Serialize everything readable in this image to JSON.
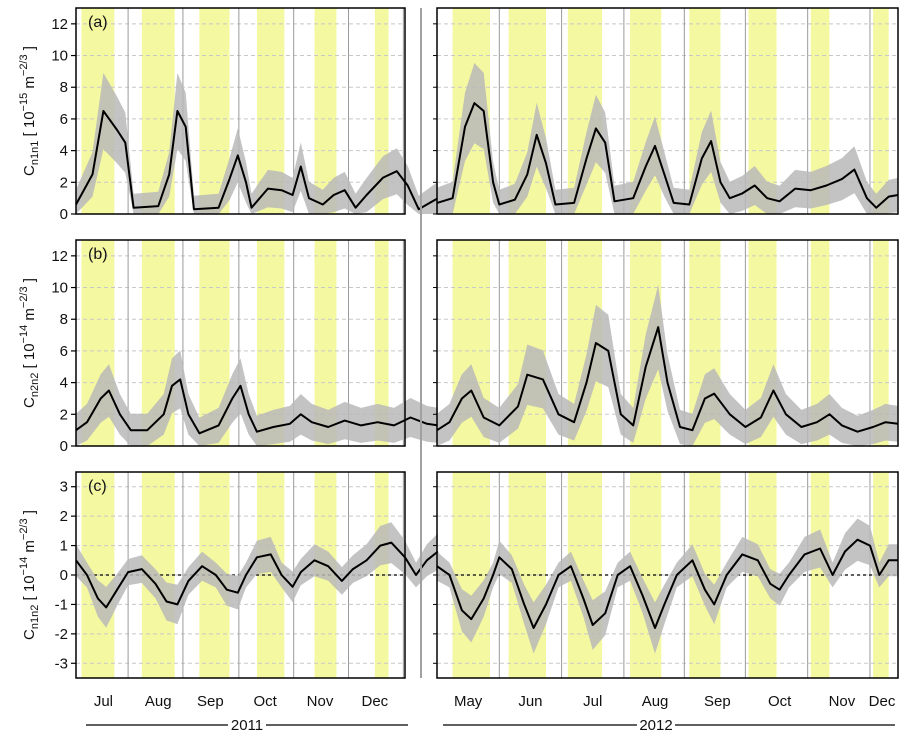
{
  "chart_data": [
    {
      "type": "line",
      "panel_label": "(a)",
      "ylabel": {
        "main": "C",
        "sub": "n1n1",
        "rest": " [ 10",
        "exp1": "−15",
        "mid": " m",
        "exp2": "−2/3",
        "end": " ]"
      },
      "ylim": [
        0,
        13
      ],
      "yticks": [
        0,
        2,
        4,
        6,
        8,
        10,
        12
      ],
      "zero_line": false,
      "grid": true,
      "series_2011": [
        {
          "x": 0,
          "y": 0.6
        },
        {
          "x": 0.3,
          "y": 2.5
        },
        {
          "x": 0.5,
          "y": 6.5
        },
        {
          "x": 0.75,
          "y": 5.3
        },
        {
          "x": 0.9,
          "y": 4.5
        },
        {
          "x": 1.05,
          "y": 0.4
        },
        {
          "x": 1.5,
          "y": 0.5
        },
        {
          "x": 1.7,
          "y": 2.5
        },
        {
          "x": 1.85,
          "y": 6.5
        },
        {
          "x": 2.0,
          "y": 5.5
        },
        {
          "x": 2.15,
          "y": 0.3
        },
        {
          "x": 2.6,
          "y": 0.4
        },
        {
          "x": 2.8,
          "y": 2.2
        },
        {
          "x": 2.95,
          "y": 3.7
        },
        {
          "x": 3.1,
          "y": 2.0
        },
        {
          "x": 3.2,
          "y": 0.4
        },
        {
          "x": 3.5,
          "y": 1.6
        },
        {
          "x": 3.75,
          "y": 1.5
        },
        {
          "x": 3.95,
          "y": 1.2
        },
        {
          "x": 4.1,
          "y": 3.0
        },
        {
          "x": 4.25,
          "y": 1.0
        },
        {
          "x": 4.5,
          "y": 0.6
        },
        {
          "x": 4.7,
          "y": 1.2
        },
        {
          "x": 4.9,
          "y": 1.5
        },
        {
          "x": 5.1,
          "y": 0.4
        },
        {
          "x": 5.3,
          "y": 1.2
        },
        {
          "x": 5.6,
          "y": 2.3
        },
        {
          "x": 5.85,
          "y": 2.7
        },
        {
          "x": 6.05,
          "y": 1.8
        },
        {
          "x": 6.25,
          "y": 0.3
        },
        {
          "x": 6.45,
          "y": 0.7
        },
        {
          "x": 6.6,
          "y": 1.0
        }
      ],
      "series_2012": [
        {
          "x": 0,
          "y": 0.7
        },
        {
          "x": 0.25,
          "y": 1.0
        },
        {
          "x": 0.45,
          "y": 5.5
        },
        {
          "x": 0.6,
          "y": 7.0
        },
        {
          "x": 0.75,
          "y": 6.5
        },
        {
          "x": 0.9,
          "y": 2.0
        },
        {
          "x": 1.0,
          "y": 0.6
        },
        {
          "x": 1.25,
          "y": 0.9
        },
        {
          "x": 1.45,
          "y": 2.5
        },
        {
          "x": 1.6,
          "y": 5.0
        },
        {
          "x": 1.75,
          "y": 3.2
        },
        {
          "x": 1.9,
          "y": 0.6
        },
        {
          "x": 2.2,
          "y": 0.7
        },
        {
          "x": 2.4,
          "y": 3.5
        },
        {
          "x": 2.55,
          "y": 5.4
        },
        {
          "x": 2.7,
          "y": 4.5
        },
        {
          "x": 2.85,
          "y": 0.8
        },
        {
          "x": 3.15,
          "y": 1.0
        },
        {
          "x": 3.35,
          "y": 3.0
        },
        {
          "x": 3.5,
          "y": 4.3
        },
        {
          "x": 3.65,
          "y": 2.5
        },
        {
          "x": 3.8,
          "y": 0.7
        },
        {
          "x": 4.05,
          "y": 0.6
        },
        {
          "x": 4.25,
          "y": 3.5
        },
        {
          "x": 4.4,
          "y": 4.6
        },
        {
          "x": 4.55,
          "y": 2.0
        },
        {
          "x": 4.7,
          "y": 1.0
        },
        {
          "x": 4.9,
          "y": 1.3
        },
        {
          "x": 5.1,
          "y": 1.8
        },
        {
          "x": 5.3,
          "y": 1.0
        },
        {
          "x": 5.5,
          "y": 0.8
        },
        {
          "x": 5.75,
          "y": 1.6
        },
        {
          "x": 6.0,
          "y": 1.5
        },
        {
          "x": 6.25,
          "y": 1.8
        },
        {
          "x": 6.5,
          "y": 2.2
        },
        {
          "x": 6.7,
          "y": 2.8
        },
        {
          "x": 6.9,
          "y": 1.0
        },
        {
          "x": 7.05,
          "y": 0.4
        },
        {
          "x": 7.25,
          "y": 1.1
        },
        {
          "x": 7.4,
          "y": 1.2
        }
      ]
    },
    {
      "type": "line",
      "panel_label": "(b)",
      "ylabel": {
        "main": "C",
        "sub": "n2n2",
        "rest": " [ 10",
        "exp1": "−14",
        "mid": " m",
        "exp2": "−2/3",
        "end": " ]"
      },
      "ylim": [
        0,
        13
      ],
      "yticks": [
        0,
        2,
        4,
        6,
        8,
        10,
        12
      ],
      "zero_line": false,
      "grid": true,
      "series_2011": [
        {
          "x": 0,
          "y": 1.0
        },
        {
          "x": 0.2,
          "y": 1.5
        },
        {
          "x": 0.45,
          "y": 3.0
        },
        {
          "x": 0.6,
          "y": 3.5
        },
        {
          "x": 0.8,
          "y": 2.0
        },
        {
          "x": 1.0,
          "y": 1.0
        },
        {
          "x": 1.3,
          "y": 1.0
        },
        {
          "x": 1.6,
          "y": 2.0
        },
        {
          "x": 1.75,
          "y": 3.8
        },
        {
          "x": 1.9,
          "y": 4.2
        },
        {
          "x": 2.05,
          "y": 2.0
        },
        {
          "x": 2.25,
          "y": 0.8
        },
        {
          "x": 2.6,
          "y": 1.3
        },
        {
          "x": 2.85,
          "y": 3.0
        },
        {
          "x": 3.0,
          "y": 3.8
        },
        {
          "x": 3.15,
          "y": 2.0
        },
        {
          "x": 3.3,
          "y": 0.9
        },
        {
          "x": 3.6,
          "y": 1.2
        },
        {
          "x": 3.9,
          "y": 1.4
        },
        {
          "x": 4.1,
          "y": 2.0
        },
        {
          "x": 4.3,
          "y": 1.5
        },
        {
          "x": 4.6,
          "y": 1.2
        },
        {
          "x": 4.9,
          "y": 1.6
        },
        {
          "x": 5.2,
          "y": 1.3
        },
        {
          "x": 5.5,
          "y": 1.5
        },
        {
          "x": 5.8,
          "y": 1.3
        },
        {
          "x": 6.1,
          "y": 1.8
        },
        {
          "x": 6.4,
          "y": 1.4
        },
        {
          "x": 6.6,
          "y": 1.3
        }
      ],
      "series_2012": [
        {
          "x": 0,
          "y": 1.0
        },
        {
          "x": 0.2,
          "y": 1.5
        },
        {
          "x": 0.4,
          "y": 3.0
        },
        {
          "x": 0.55,
          "y": 3.5
        },
        {
          "x": 0.75,
          "y": 1.8
        },
        {
          "x": 1.0,
          "y": 1.3
        },
        {
          "x": 1.3,
          "y": 2.5
        },
        {
          "x": 1.45,
          "y": 4.5
        },
        {
          "x": 1.7,
          "y": 4.2
        },
        {
          "x": 1.95,
          "y": 2.0
        },
        {
          "x": 2.2,
          "y": 1.5
        },
        {
          "x": 2.4,
          "y": 4.0
        },
        {
          "x": 2.55,
          "y": 6.5
        },
        {
          "x": 2.75,
          "y": 6.0
        },
        {
          "x": 2.95,
          "y": 2.0
        },
        {
          "x": 3.15,
          "y": 1.3
        },
        {
          "x": 3.35,
          "y": 5.0
        },
        {
          "x": 3.55,
          "y": 7.5
        },
        {
          "x": 3.7,
          "y": 4.0
        },
        {
          "x": 3.9,
          "y": 1.2
        },
        {
          "x": 4.1,
          "y": 1.0
        },
        {
          "x": 4.3,
          "y": 3.0
        },
        {
          "x": 4.45,
          "y": 3.3
        },
        {
          "x": 4.7,
          "y": 2.0
        },
        {
          "x": 4.95,
          "y": 1.2
        },
        {
          "x": 5.2,
          "y": 1.8
        },
        {
          "x": 5.4,
          "y": 3.5
        },
        {
          "x": 5.6,
          "y": 2.0
        },
        {
          "x": 5.85,
          "y": 1.2
        },
        {
          "x": 6.1,
          "y": 1.5
        },
        {
          "x": 6.3,
          "y": 2.0
        },
        {
          "x": 6.5,
          "y": 1.3
        },
        {
          "x": 6.75,
          "y": 0.9
        },
        {
          "x": 7.0,
          "y": 1.2
        },
        {
          "x": 7.2,
          "y": 1.5
        },
        {
          "x": 7.4,
          "y": 1.4
        }
      ]
    },
    {
      "type": "line",
      "panel_label": "(c)",
      "ylabel": {
        "main": "C",
        "sub": "n1n2",
        "rest": " [ 10",
        "exp1": "−14",
        "mid": " m",
        "exp2": "−2/3",
        "end": " ]"
      },
      "ylim": [
        -3.5,
        3.5
      ],
      "yticks": [
        -3,
        -2,
        -1,
        0,
        1,
        2,
        3
      ],
      "zero_line": true,
      "grid": true,
      "series_2011": [
        {
          "x": 0,
          "y": 0.5
        },
        {
          "x": 0.2,
          "y": 0.0
        },
        {
          "x": 0.4,
          "y": -0.8
        },
        {
          "x": 0.55,
          "y": -1.1
        },
        {
          "x": 0.75,
          "y": -0.5
        },
        {
          "x": 0.95,
          "y": 0.1
        },
        {
          "x": 1.2,
          "y": 0.2
        },
        {
          "x": 1.45,
          "y": -0.3
        },
        {
          "x": 1.65,
          "y": -0.9
        },
        {
          "x": 1.85,
          "y": -1.0
        },
        {
          "x": 2.05,
          "y": -0.2
        },
        {
          "x": 2.3,
          "y": 0.3
        },
        {
          "x": 2.55,
          "y": 0.0
        },
        {
          "x": 2.75,
          "y": -0.5
        },
        {
          "x": 2.95,
          "y": -0.6
        },
        {
          "x": 3.1,
          "y": 0.0
        },
        {
          "x": 3.3,
          "y": 0.6
        },
        {
          "x": 3.55,
          "y": 0.7
        },
        {
          "x": 3.75,
          "y": 0.0
        },
        {
          "x": 3.95,
          "y": -0.4
        },
        {
          "x": 4.1,
          "y": 0.1
        },
        {
          "x": 4.35,
          "y": 0.5
        },
        {
          "x": 4.6,
          "y": 0.3
        },
        {
          "x": 4.85,
          "y": -0.2
        },
        {
          "x": 5.05,
          "y": 0.2
        },
        {
          "x": 5.3,
          "y": 0.5
        },
        {
          "x": 5.55,
          "y": 1.0
        },
        {
          "x": 5.75,
          "y": 1.1
        },
        {
          "x": 6.0,
          "y": 0.6
        },
        {
          "x": 6.2,
          "y": 0.0
        },
        {
          "x": 6.4,
          "y": 0.5
        },
        {
          "x": 6.6,
          "y": 0.8
        }
      ],
      "series_2012": [
        {
          "x": 0,
          "y": 0.3
        },
        {
          "x": 0.2,
          "y": 0.0
        },
        {
          "x": 0.4,
          "y": -1.2
        },
        {
          "x": 0.55,
          "y": -1.5
        },
        {
          "x": 0.75,
          "y": -0.8
        },
        {
          "x": 0.9,
          "y": 0.0
        },
        {
          "x": 1.0,
          "y": 0.6
        },
        {
          "x": 1.2,
          "y": 0.2
        },
        {
          "x": 1.4,
          "y": -1.0
        },
        {
          "x": 1.55,
          "y": -1.8
        },
        {
          "x": 1.75,
          "y": -1.0
        },
        {
          "x": 1.95,
          "y": 0.0
        },
        {
          "x": 2.15,
          "y": 0.3
        },
        {
          "x": 2.35,
          "y": -0.8
        },
        {
          "x": 2.5,
          "y": -1.7
        },
        {
          "x": 2.7,
          "y": -1.3
        },
        {
          "x": 2.9,
          "y": 0.0
        },
        {
          "x": 3.1,
          "y": 0.3
        },
        {
          "x": 3.3,
          "y": -0.7
        },
        {
          "x": 3.5,
          "y": -1.8
        },
        {
          "x": 3.65,
          "y": -1.0
        },
        {
          "x": 3.85,
          "y": 0.0
        },
        {
          "x": 4.1,
          "y": 0.5
        },
        {
          "x": 4.3,
          "y": -0.5
        },
        {
          "x": 4.45,
          "y": -1.0
        },
        {
          "x": 4.65,
          "y": 0.0
        },
        {
          "x": 4.9,
          "y": 0.7
        },
        {
          "x": 5.15,
          "y": 0.5
        },
        {
          "x": 5.35,
          "y": -0.3
        },
        {
          "x": 5.5,
          "y": -0.5
        },
        {
          "x": 5.65,
          "y": 0.0
        },
        {
          "x": 5.9,
          "y": 0.7
        },
        {
          "x": 6.15,
          "y": 0.9
        },
        {
          "x": 6.35,
          "y": 0.0
        },
        {
          "x": 6.55,
          "y": 0.8
        },
        {
          "x": 6.75,
          "y": 1.2
        },
        {
          "x": 6.95,
          "y": 1.0
        },
        {
          "x": 7.1,
          "y": 0.0
        },
        {
          "x": 7.25,
          "y": 0.5
        },
        {
          "x": 7.4,
          "y": 0.5
        }
      ]
    }
  ],
  "axes": {
    "months_2011": [
      "Jul",
      "Aug",
      "Sep",
      "Oct",
      "Nov",
      "Dec"
    ],
    "months_2012": [
      "May",
      "Jun",
      "Jul",
      "Aug",
      "Sep",
      "Oct",
      "Nov",
      "Dec"
    ],
    "year_2011": "2011",
    "year_2012": "2012"
  },
  "colors": {
    "band": "#f4f8a0",
    "envelope": "#b8b8b8",
    "line": "#000000",
    "grid": "#c8c8c8",
    "separator": "#9a9a9a"
  }
}
